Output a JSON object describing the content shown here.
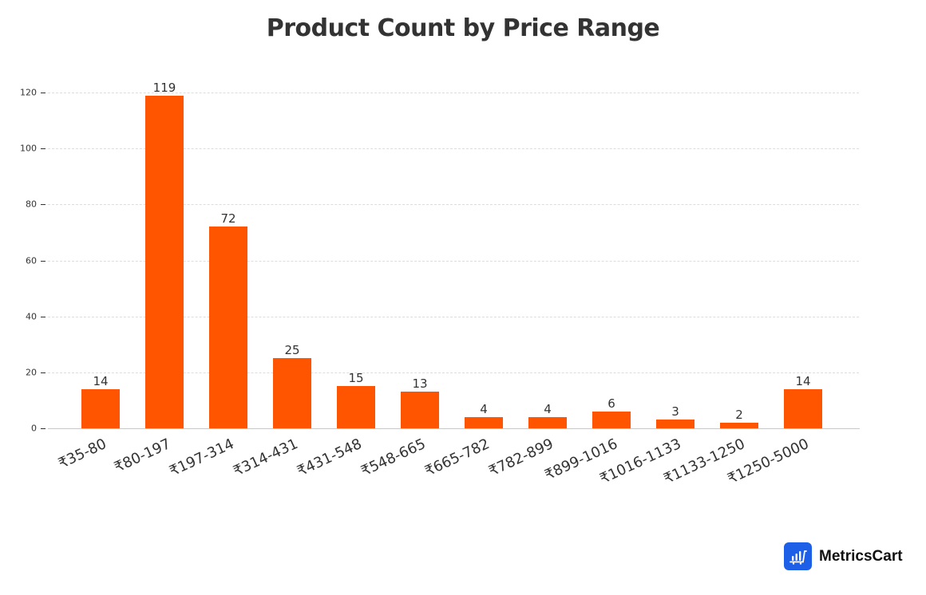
{
  "chart_data": {
    "type": "bar",
    "title": "Product Count by Price Range",
    "xlabel": "",
    "ylabel": "",
    "categories": [
      "₹35-80",
      "₹80-197",
      "₹197-314",
      "₹314-431",
      "₹431-548",
      "₹548-665",
      "₹665-782",
      "₹782-899",
      "₹899-1016",
      "₹1016-1133",
      "₹1133-1250",
      "₹1250-5000"
    ],
    "values": [
      14,
      119,
      72,
      25,
      15,
      13,
      4,
      4,
      6,
      3,
      2,
      14
    ],
    "ylim": [
      0,
      120
    ],
    "yticks": [
      0,
      20,
      40,
      60,
      80,
      100,
      120
    ],
    "grid": true,
    "grid_style": "dashed horizontal",
    "legend": null,
    "bar_color": "#ff5500",
    "data_labels": true
  },
  "branding": {
    "name": "MetricsCart",
    "icon": "bar-chart-cart-icon",
    "color": "#1e5fe8"
  }
}
